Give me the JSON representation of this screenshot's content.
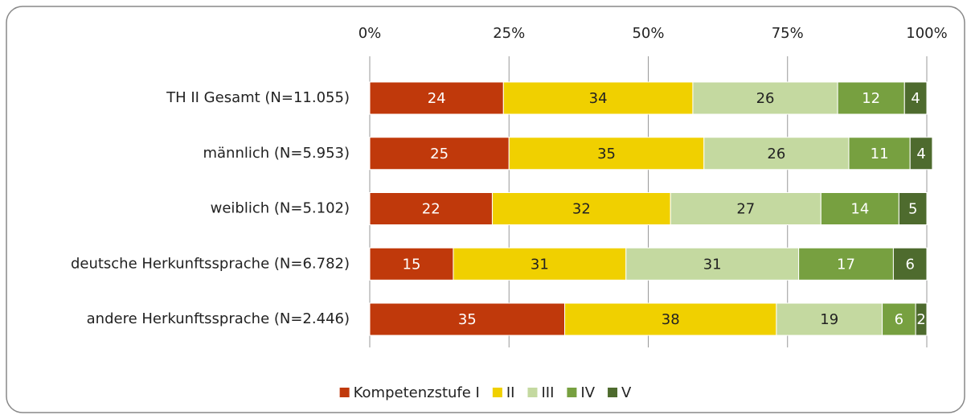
{
  "chart_data": {
    "type": "stacked_barh",
    "categories": [
      "TH II Gesamt (N=11.055)",
      "männlich (N=5.953)",
      "weiblich (N=5.102)",
      "deutsche Herkunftssprache (N=6.782)",
      "andere Herkunftssprache (N=2.446)"
    ],
    "series": [
      {
        "name": "Kompetenzstufe I",
        "color": "#c0390b",
        "values": [
          24,
          25,
          22,
          15,
          35
        ]
      },
      {
        "name": "II",
        "color": "#f0d000",
        "values": [
          34,
          35,
          32,
          31,
          38
        ]
      },
      {
        "name": "III",
        "color": "#c4d9a0",
        "values": [
          26,
          26,
          27,
          31,
          19
        ]
      },
      {
        "name": "IV",
        "color": "#77a040",
        "values": [
          12,
          11,
          14,
          17,
          6
        ]
      },
      {
        "name": "V",
        "color": "#4e6b2e",
        "values": [
          4,
          4,
          5,
          6,
          2
        ]
      }
    ],
    "xlim": [
      0,
      100
    ],
    "xticks": [
      {
        "value": 0,
        "label": "0%"
      },
      {
        "value": 25,
        "label": "25%"
      },
      {
        "value": 50,
        "label": "50%"
      },
      {
        "value": 75,
        "label": "75%"
      },
      {
        "value": 100,
        "label": "100%"
      }
    ],
    "grid": true,
    "legend": "bottom"
  }
}
